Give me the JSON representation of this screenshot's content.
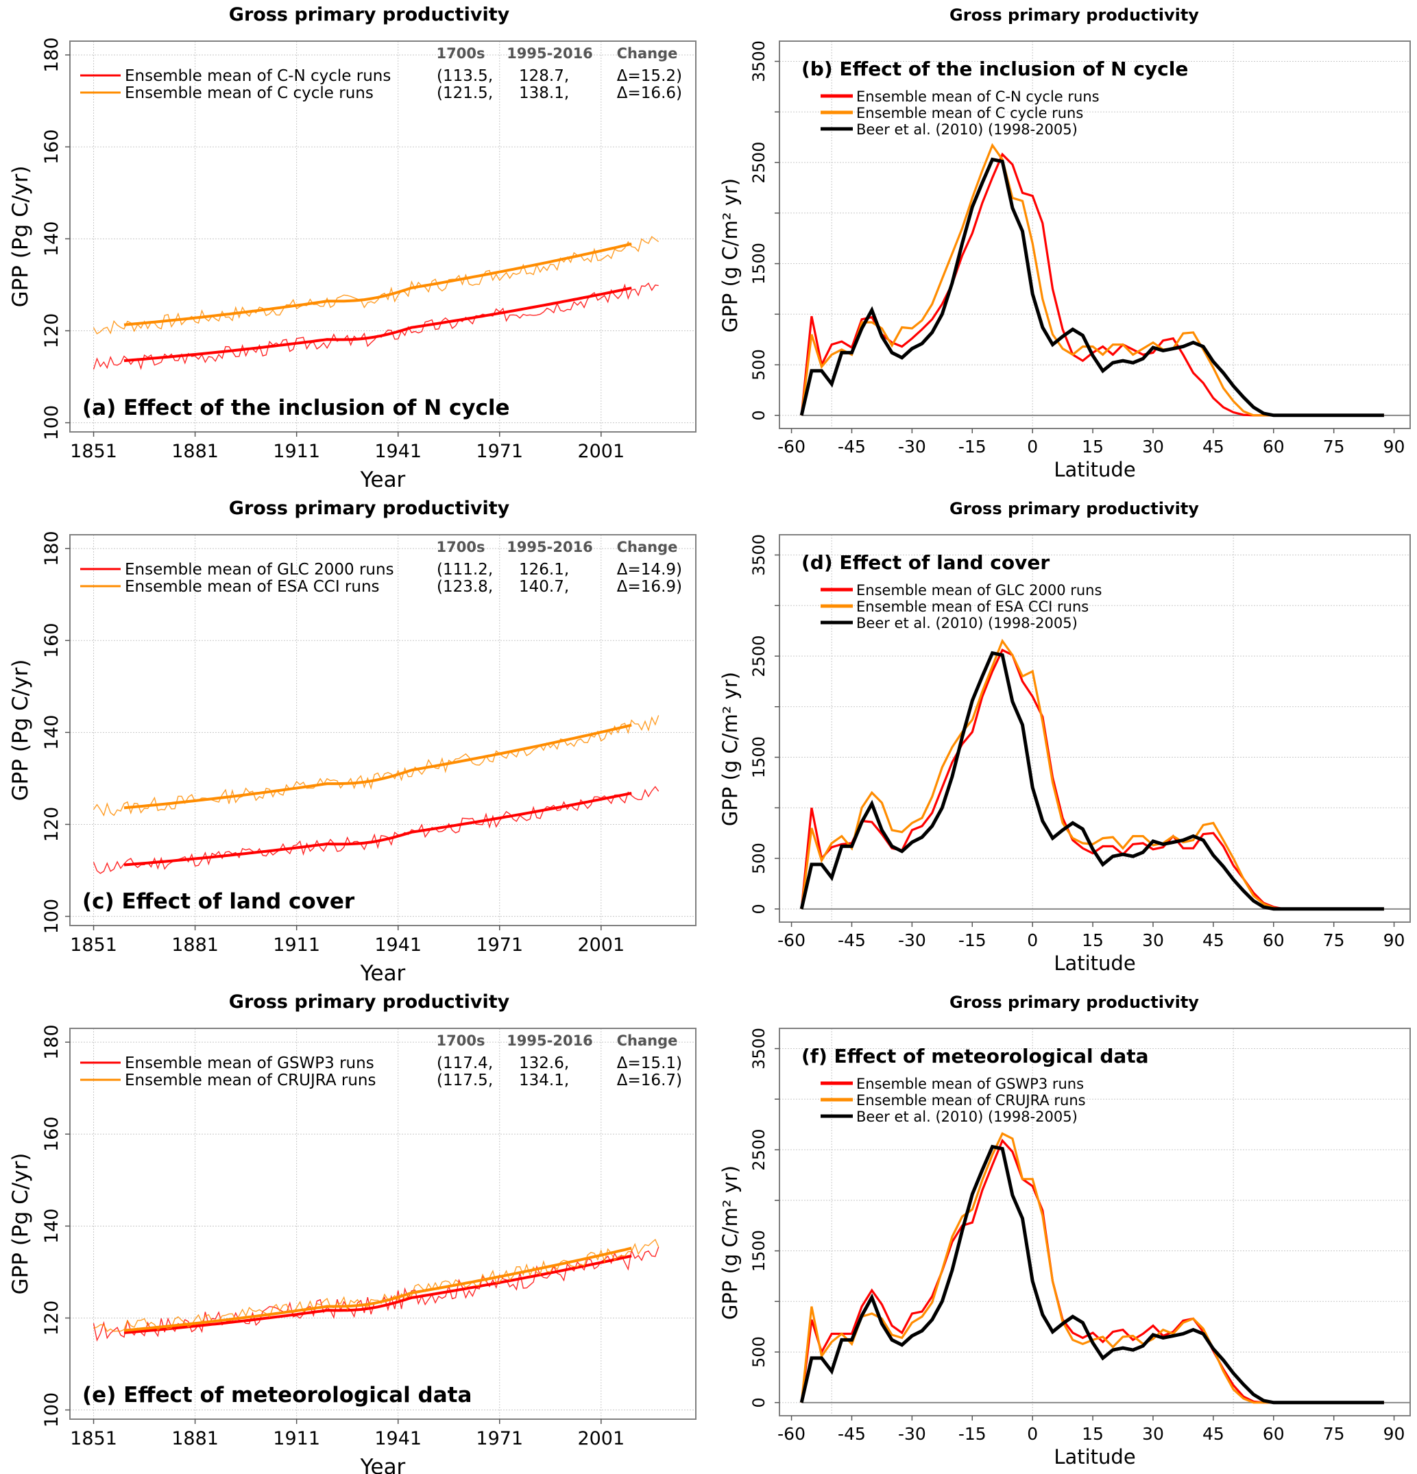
{
  "figure": {
    "panel_title": "Gross primary productivity"
  },
  "chart_data": [
    {
      "id": "a",
      "type": "line",
      "title": "Gross primary productivity",
      "panel_label": "(a) Effect of the inclusion of N cycle",
      "xlabel": "Year",
      "ylabel": "GPP (Pg C/yr)",
      "xlim": [
        1844,
        2029
      ],
      "ylim": [
        98,
        183
      ],
      "xticks": [
        1851,
        1881,
        1911,
        1941,
        1971,
        2001
      ],
      "yticks": [
        100,
        120,
        140,
        160,
        180
      ],
      "grid": true,
      "legend_position": "top-left",
      "table_headers": [
        "1700s",
        "1995-2016",
        "Change"
      ],
      "series": [
        {
          "name": "Ensemble mean of C-N cycle runs",
          "color": "#ff0000",
          "v1700s": "(113.5,",
          "v1995": "128.7,",
          "change": "Δ=15.2)",
          "start": 112.5,
          "end": 129.8,
          "smooth_start": 113.5,
          "smooth_end": 129.3,
          "dip_year": 1928,
          "noise_amp": 1.6,
          "seed": 3
        },
        {
          "name": "Ensemble mean of C cycle runs",
          "color": "#ff8c00",
          "v1700s": "(121.5,",
          "v1995": "138.1,",
          "change": "Δ=16.6)",
          "start": 120.5,
          "end": 139.5,
          "smooth_start": 121.3,
          "smooth_end": 138.9,
          "dip_year": 1928,
          "noise_amp": 1.6,
          "seed": 7
        }
      ]
    },
    {
      "id": "b",
      "type": "line",
      "title": "Gross primary productivity",
      "panel_label": "(b) Effect of the inclusion of N cycle",
      "xlabel": "Latitude",
      "ylabel": "GPP (g C/m² yr)",
      "xlim": [
        -63,
        94
      ],
      "ylim": [
        -130,
        3700
      ],
      "xticks": [
        -60,
        -45,
        -30,
        -15,
        0,
        15,
        30,
        45,
        60,
        75,
        90
      ],
      "yticks": [
        0,
        500,
        1500,
        2500,
        3500
      ],
      "grid": true,
      "legend_position": "top-left",
      "lat": [
        -57.5,
        -55,
        -52.5,
        -50,
        -47.5,
        -45,
        -42.5,
        -40,
        -37.5,
        -35,
        -32.5,
        -30,
        -27.5,
        -25,
        -22.5,
        -20,
        -17.5,
        -15,
        -12.5,
        -10,
        -7.5,
        -5,
        -2.5,
        0,
        2.5,
        5,
        7.5,
        10,
        12.5,
        15,
        17.5,
        20,
        22.5,
        25,
        27.5,
        30,
        32.5,
        35,
        37.5,
        40,
        42.5,
        45,
        47.5,
        50,
        52.5,
        55,
        57.5,
        60,
        62.5,
        65,
        67.5,
        70,
        72.5,
        75,
        77.5,
        80,
        82.5,
        85,
        87.5
      ],
      "series": [
        {
          "name": "Ensemble mean of C-N cycle runs",
          "color": "#ff0000",
          "values": [
            0,
            980,
            500,
            700,
            730,
            670,
            950,
            970,
            800,
            720,
            680,
            760,
            850,
            950,
            1100,
            1300,
            1580,
            1800,
            2100,
            2350,
            2580,
            2480,
            2200,
            2170,
            1900,
            1250,
            850,
            600,
            540,
            620,
            680,
            600,
            700,
            650,
            600,
            620,
            740,
            760,
            600,
            420,
            320,
            170,
            80,
            30,
            5,
            0,
            0,
            0,
            0,
            0,
            0,
            0,
            0,
            0,
            0,
            0,
            0,
            0,
            0
          ]
        },
        {
          "name": "Ensemble mean of C cycle runs",
          "color": "#ff8c00",
          "values": [
            0,
            800,
            480,
            600,
            650,
            600,
            920,
            920,
            860,
            690,
            870,
            860,
            940,
            1100,
            1350,
            1600,
            1850,
            2150,
            2420,
            2670,
            2530,
            2150,
            2120,
            1700,
            1150,
            800,
            660,
            600,
            680,
            680,
            600,
            700,
            700,
            600,
            660,
            720,
            650,
            660,
            810,
            820,
            650,
            470,
            270,
            140,
            40,
            0,
            0,
            0,
            0,
            0,
            0,
            0,
            0,
            0,
            0,
            0,
            0,
            0,
            0
          ]
        },
        {
          "name": "Beer et al. (2010) (1998-2005)",
          "color": "#000000",
          "values": [
            0,
            440,
            440,
            310,
            620,
            620,
            860,
            1040,
            780,
            620,
            570,
            660,
            710,
            820,
            1000,
            1310,
            1700,
            2060,
            2300,
            2530,
            2510,
            2050,
            1820,
            1200,
            870,
            700,
            780,
            850,
            790,
            590,
            440,
            520,
            540,
            520,
            560,
            670,
            640,
            660,
            680,
            720,
            680,
            530,
            420,
            290,
            180,
            80,
            20,
            0,
            0,
            0,
            0,
            0,
            0,
            0,
            0,
            0,
            0,
            0,
            0
          ]
        }
      ]
    },
    {
      "id": "c",
      "type": "line",
      "title": "Gross primary productivity",
      "panel_label": "(c) Effect of land cover",
      "xlabel": "Year",
      "ylabel": "GPP (Pg C/yr)",
      "xlim": [
        1844,
        2029
      ],
      "ylim": [
        98,
        183
      ],
      "xticks": [
        1851,
        1881,
        1911,
        1941,
        1971,
        2001
      ],
      "yticks": [
        100,
        120,
        140,
        160,
        180
      ],
      "grid": true,
      "legend_position": "top-left",
      "table_headers": [
        "1700s",
        "1995-2016",
        "Change"
      ],
      "series": [
        {
          "name": "Ensemble mean of GLC 2000 runs",
          "color": "#ff0000",
          "v1700s": "(111.2,",
          "v1995": "126.1,",
          "change": "Δ=14.9)",
          "start": 110.5,
          "end": 127.5,
          "smooth_start": 111.2,
          "smooth_end": 126.8,
          "dip_year": 1928,
          "noise_amp": 1.6,
          "seed": 11
        },
        {
          "name": "Ensemble mean of ESA CCI runs",
          "color": "#ff8c00",
          "v1700s": "(123.8,",
          "v1995": "140.7,",
          "change": "Δ=16.9)",
          "start": 123,
          "end": 142.5,
          "smooth_start": 123.6,
          "smooth_end": 141.6,
          "dip_year": 1928,
          "noise_amp": 1.6,
          "seed": 13
        }
      ]
    },
    {
      "id": "d",
      "type": "line",
      "title": "Gross primary productivity",
      "panel_label": "(d) Effect of land cover",
      "xlabel": "Latitude",
      "ylabel": "GPP (g C/m² yr)",
      "xlim": [
        -63,
        94
      ],
      "ylim": [
        -130,
        3700
      ],
      "xticks": [
        -60,
        -45,
        -30,
        -15,
        0,
        15,
        30,
        45,
        60,
        75,
        90
      ],
      "yticks": [
        0,
        500,
        1500,
        2500,
        3500
      ],
      "grid": true,
      "legend_position": "top-left",
      "lat": [
        -57.5,
        -55,
        -52.5,
        -50,
        -47.5,
        -45,
        -42.5,
        -40,
        -37.5,
        -35,
        -32.5,
        -30,
        -27.5,
        -25,
        -22.5,
        -20,
        -17.5,
        -15,
        -12.5,
        -10,
        -7.5,
        -5,
        -2.5,
        0,
        2.5,
        5,
        7.5,
        10,
        12.5,
        15,
        17.5,
        20,
        22.5,
        25,
        27.5,
        30,
        32.5,
        35,
        37.5,
        40,
        42.5,
        45,
        47.5,
        50,
        52.5,
        55,
        57.5,
        60,
        62.5,
        65,
        67.5,
        70,
        72.5,
        75,
        77.5,
        80,
        82.5,
        85,
        87.5
      ],
      "series": [
        {
          "name": "Ensemble mean of GLC 2000 runs",
          "color": "#ff0000",
          "values": [
            0,
            1000,
            500,
            610,
            640,
            650,
            870,
            860,
            740,
            600,
            580,
            780,
            820,
            950,
            1200,
            1450,
            1630,
            1750,
            2100,
            2350,
            2560,
            2510,
            2250,
            2100,
            1900,
            1300,
            900,
            680,
            600,
            550,
            620,
            620,
            540,
            640,
            650,
            590,
            610,
            720,
            600,
            600,
            740,
            750,
            620,
            430,
            300,
            160,
            60,
            20,
            0,
            0,
            0,
            0,
            0,
            0,
            0,
            0,
            0,
            0,
            0
          ]
        },
        {
          "name": "Ensemble mean of ESA CCI runs",
          "color": "#ff8c00",
          "values": [
            0,
            800,
            480,
            650,
            720,
            600,
            1000,
            1150,
            1050,
            780,
            760,
            850,
            900,
            1110,
            1400,
            1600,
            1750,
            1870,
            2150,
            2400,
            2650,
            2510,
            2300,
            2350,
            1850,
            1250,
            850,
            700,
            650,
            640,
            700,
            710,
            600,
            720,
            720,
            630,
            650,
            720,
            660,
            680,
            830,
            850,
            680,
            500,
            300,
            130,
            50,
            10,
            0,
            0,
            0,
            0,
            0,
            0,
            0,
            0,
            0,
            0,
            0
          ]
        },
        {
          "name": "Beer et al. (2010) (1998-2005)",
          "color": "#000000",
          "values": [
            0,
            440,
            440,
            310,
            620,
            620,
            860,
            1040,
            780,
            620,
            570,
            660,
            710,
            820,
            1000,
            1310,
            1700,
            2060,
            2300,
            2530,
            2510,
            2050,
            1820,
            1200,
            870,
            700,
            780,
            850,
            790,
            590,
            440,
            520,
            540,
            520,
            560,
            670,
            640,
            660,
            680,
            720,
            680,
            530,
            420,
            290,
            180,
            80,
            20,
            0,
            0,
            0,
            0,
            0,
            0,
            0,
            0,
            0,
            0,
            0,
            0
          ]
        }
      ]
    },
    {
      "id": "e",
      "type": "line",
      "title": "Gross primary productivity",
      "panel_label": "(e) Effect of meteorological data",
      "xlabel": "Year",
      "ylabel": "GPP (Pg C/yr)",
      "xlim": [
        1844,
        2029
      ],
      "ylim": [
        98,
        183
      ],
      "xticks": [
        1851,
        1881,
        1911,
        1941,
        1971,
        2001
      ],
      "yticks": [
        100,
        120,
        140,
        160,
        180
      ],
      "grid": true,
      "legend_position": "top-left",
      "table_headers": [
        "1700s",
        "1995-2016",
        "Change"
      ],
      "series": [
        {
          "name": "Ensemble mean of GSWP3 runs",
          "color": "#ff0000",
          "v1700s": "(117.4,",
          "v1995": "132.6,",
          "change": "Δ=15.1)",
          "start": 117,
          "end": 134,
          "smooth_start": 116.8,
          "smooth_end": 133.5,
          "dip_year": 1928,
          "noise_amp": 2.2,
          "seed": 17
        },
        {
          "name": "Ensemble mean of CRUJRA runs",
          "color": "#ff8c00",
          "v1700s": "(117.5,",
          "v1995": "134.1,",
          "change": "Δ=16.7)",
          "start": 117.5,
          "end": 136,
          "smooth_start": 117.3,
          "smooth_end": 135.2,
          "dip_year": 1928,
          "noise_amp": 1.4,
          "seed": 19
        }
      ]
    },
    {
      "id": "f",
      "type": "line",
      "title": "Gross primary productivity",
      "panel_label": "(f) Effect of meteorological data",
      "xlabel": "Latitude",
      "ylabel": "GPP (g C/m² yr)",
      "xlim": [
        -63,
        94
      ],
      "ylim": [
        -130,
        3700
      ],
      "xticks": [
        -60,
        -45,
        -30,
        -15,
        0,
        15,
        30,
        45,
        60,
        75,
        90
      ],
      "yticks": [
        0,
        500,
        1500,
        2500,
        3500
      ],
      "grid": true,
      "legend_position": "top-left",
      "lat": [
        -57.5,
        -55,
        -52.5,
        -50,
        -47.5,
        -45,
        -42.5,
        -40,
        -37.5,
        -35,
        -32.5,
        -30,
        -27.5,
        -25,
        -22.5,
        -20,
        -17.5,
        -15,
        -12.5,
        -10,
        -7.5,
        -5,
        -2.5,
        0,
        2.5,
        5,
        7.5,
        10,
        12.5,
        15,
        17.5,
        20,
        22.5,
        25,
        27.5,
        30,
        32.5,
        35,
        37.5,
        40,
        42.5,
        45,
        47.5,
        50,
        52.5,
        55,
        57.5,
        60,
        62.5,
        65,
        67.5,
        70,
        72.5,
        75,
        77.5,
        80,
        82.5,
        85,
        87.5
      ],
      "series": [
        {
          "name": "Ensemble mean of GSWP3 runs",
          "color": "#ff0000",
          "values": [
            0,
            820,
            500,
            680,
            680,
            680,
            950,
            1110,
            970,
            760,
            690,
            880,
            900,
            1050,
            1300,
            1590,
            1750,
            1780,
            2100,
            2350,
            2590,
            2480,
            2210,
            2140,
            1900,
            1200,
            820,
            690,
            640,
            690,
            600,
            700,
            720,
            620,
            680,
            760,
            660,
            700,
            810,
            830,
            700,
            510,
            330,
            170,
            60,
            10,
            0,
            0,
            0,
            0,
            0,
            0,
            0,
            0,
            0,
            0,
            0,
            0,
            0
          ]
        },
        {
          "name": "Ensemble mean of CRUJRA runs",
          "color": "#ff8c00",
          "values": [
            0,
            950,
            460,
            600,
            680,
            580,
            850,
            880,
            830,
            670,
            640,
            790,
            850,
            990,
            1310,
            1640,
            1840,
            1910,
            2200,
            2450,
            2660,
            2610,
            2210,
            2210,
            1850,
            1200,
            800,
            620,
            580,
            620,
            650,
            550,
            650,
            660,
            580,
            630,
            720,
            680,
            790,
            830,
            730,
            530,
            310,
            130,
            40,
            0,
            0,
            0,
            0,
            0,
            0,
            0,
            0,
            0,
            0,
            0,
            0,
            0,
            0
          ]
        },
        {
          "name": "Beer et al. (2010) (1998-2005)",
          "color": "#000000",
          "values": [
            0,
            440,
            440,
            310,
            620,
            620,
            860,
            1040,
            780,
            620,
            570,
            660,
            710,
            820,
            1000,
            1310,
            1700,
            2060,
            2300,
            2530,
            2510,
            2050,
            1820,
            1200,
            870,
            700,
            780,
            850,
            790,
            590,
            440,
            520,
            540,
            520,
            560,
            670,
            640,
            660,
            680,
            720,
            680,
            530,
            420,
            290,
            180,
            80,
            20,
            0,
            0,
            0,
            0,
            0,
            0,
            0,
            0,
            0,
            0,
            0,
            0
          ]
        }
      ]
    }
  ]
}
